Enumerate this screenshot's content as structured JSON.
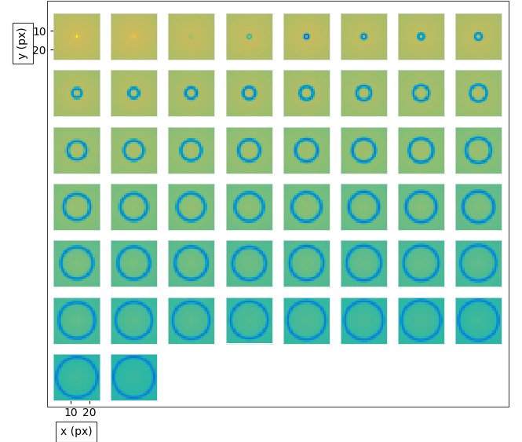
{
  "chart_data": {
    "type": "image_grid",
    "xlabel": "x (px)",
    "ylabel": "y (px)",
    "xticks": [
      10,
      20
    ],
    "yticks": [
      10,
      20
    ],
    "image_size": 25,
    "clim": [
      0,
      1
    ],
    "ring_radius": [
      0,
      0.4,
      0.6,
      0.8,
      1.0,
      1.2,
      1.5,
      1.8,
      2.4,
      2.7,
      3.0,
      3.3,
      3.6,
      3.9,
      4.2,
      4.5,
      5.0,
      5.3,
      5.5,
      5.8,
      6.0,
      6.2,
      6.5,
      6.8,
      7.0,
      7.2,
      7.4,
      7.6,
      7.8,
      8.0,
      8.1,
      8.3,
      8.4,
      8.6,
      8.7,
      8.9,
      9.0,
      9.2,
      9.3,
      9.5,
      9.6,
      9.8,
      9.9,
      10.0,
      10.2,
      10.3,
      10.5,
      10.6,
      10.8,
      11.0
    ],
    "background": [
      0.84,
      0.84,
      0.83,
      0.83,
      0.83,
      0.82,
      0.82,
      0.82,
      0.81,
      0.81,
      0.8,
      0.8,
      0.8,
      0.79,
      0.79,
      0.79,
      0.78,
      0.78,
      0.77,
      0.77,
      0.76,
      0.76,
      0.76,
      0.75,
      0.75,
      0.74,
      0.74,
      0.73,
      0.73,
      0.72,
      0.72,
      0.71,
      0.71,
      0.7,
      0.7,
      0.69,
      0.69,
      0.68,
      0.68,
      0.67,
      0.67,
      0.66,
      0.66,
      0.65,
      0.65,
      0.64,
      0.64,
      0.63,
      0.63,
      0.62
    ],
    "ring_value": [
      1.0,
      0.9,
      0.75,
      0.6,
      0.2,
      0.3,
      0.3,
      0.3,
      0.3,
      0.3,
      0.3,
      0.3,
      0.3,
      0.3,
      0.3,
      0.3,
      0.3,
      0.3,
      0.3,
      0.3,
      0.3,
      0.3,
      0.3,
      0.3,
      0.3,
      0.3,
      0.3,
      0.3,
      0.3,
      0.3,
      0.3,
      0.3,
      0.3,
      0.3,
      0.3,
      0.3,
      0.3,
      0.3,
      0.3,
      0.3,
      0.3,
      0.3,
      0.3,
      0.3,
      0.3,
      0.3,
      0.3,
      0.3,
      0.3,
      0.3
    ]
  }
}
